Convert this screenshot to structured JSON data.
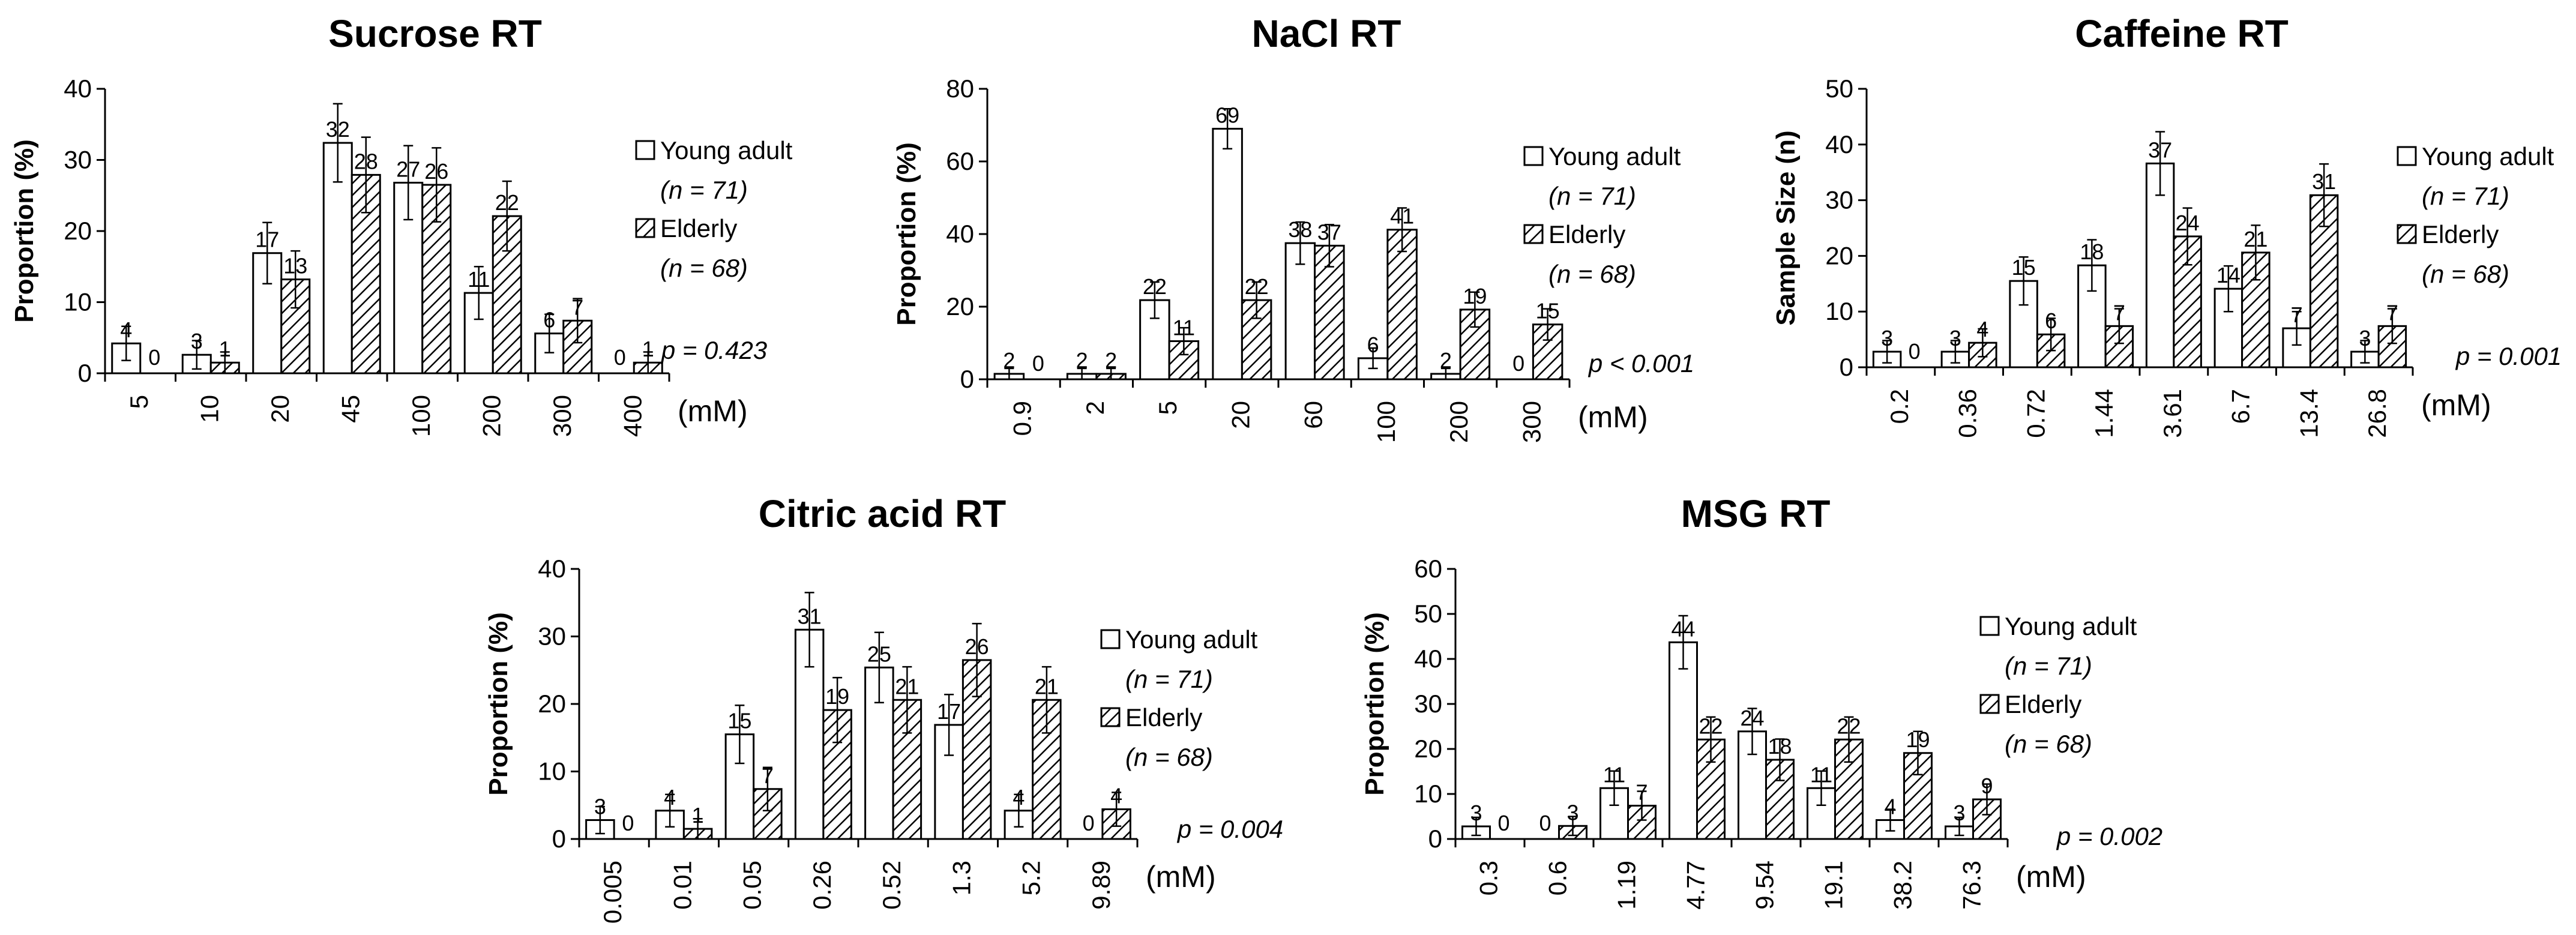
{
  "legend": {
    "series": [
      "Young adult",
      "Elderly"
    ],
    "series_n": [
      "(n = 71)",
      "(n = 68)"
    ],
    "unit": "(mM)"
  },
  "chart_data": [
    {
      "type": "bar",
      "title": "Sucrose RT",
      "ylabel": "Proportion (%)",
      "ylim": [
        0,
        40
      ],
      "yticks": [
        0,
        10,
        20,
        30,
        40
      ],
      "categories": [
        "5",
        "10",
        "20",
        "45",
        "100",
        "200",
        "300",
        "400"
      ],
      "series": [
        {
          "name": "Young adult",
          "values": [
            4,
            3,
            17,
            32,
            27,
            11,
            6,
            0
          ],
          "plot_values": [
            4.2,
            2.6,
            16.9,
            32.4,
            26.8,
            11.3,
            5.6,
            0
          ],
          "errors": [
            2.4,
            2.0,
            4.3,
            5.5,
            5.2,
            3.7,
            2.7,
            0
          ]
        },
        {
          "name": "Elderly",
          "values": [
            0,
            1,
            13,
            28,
            26,
            22,
            7,
            1
          ],
          "plot_values": [
            0,
            1.5,
            13.2,
            27.9,
            26.5,
            22.1,
            7.4,
            1.5
          ],
          "errors": [
            0,
            1.5,
            4.0,
            5.3,
            5.2,
            4.9,
            3.1,
            1.5
          ]
        }
      ],
      "p_value": "p = 0.423"
    },
    {
      "type": "bar",
      "title": "NaCl RT",
      "ylabel": "Proportion (%)",
      "ylim": [
        0,
        80
      ],
      "yticks": [
        0,
        20,
        40,
        60,
        80
      ],
      "categories": [
        "0.9",
        "2",
        "5",
        "20",
        "60",
        "100",
        "200",
        "300"
      ],
      "series": [
        {
          "name": "Young adult",
          "values": [
            2,
            2,
            22,
            69,
            38,
            6,
            2,
            0
          ],
          "plot_values": [
            1.5,
            1.5,
            21.8,
            69,
            37.5,
            5.8,
            1.5,
            0
          ],
          "errors": [
            1.5,
            1.5,
            5,
            5.5,
            5.8,
            2.8,
            1.5,
            0
          ]
        },
        {
          "name": "Elderly",
          "values": [
            0,
            2,
            11,
            22,
            37,
            41,
            19,
            15
          ],
          "plot_values": [
            0,
            1.5,
            10.5,
            21.8,
            36.8,
            41.2,
            19.2,
            15.1
          ],
          "errors": [
            0,
            1.5,
            3.7,
            5.0,
            5.8,
            6.0,
            4.8,
            4.3
          ]
        }
      ],
      "p_value": "p < 0.001"
    },
    {
      "type": "bar",
      "title": "Caffeine RT",
      "ylabel": "Sample Size (n)",
      "ylim": [
        0,
        50
      ],
      "yticks": [
        0,
        10,
        20,
        30,
        40,
        50
      ],
      "categories": [
        "0.2",
        "0.36",
        "0.72",
        "1.44",
        "3.61",
        "6.7",
        "13.4",
        "26.8"
      ],
      "series": [
        {
          "name": "Young adult",
          "values": [
            3,
            3,
            15,
            18,
            37,
            14,
            7,
            3
          ],
          "plot_values": [
            2.8,
            2.8,
            15.5,
            18.3,
            36.6,
            14.1,
            7.0,
            2.8
          ],
          "errors": [
            2.0,
            2.0,
            4.3,
            4.6,
            5.7,
            4.1,
            3.0,
            2.0
          ]
        },
        {
          "name": "Elderly",
          "values": [
            0,
            4,
            6,
            7,
            24,
            21,
            31,
            7
          ],
          "plot_values": [
            0,
            4.4,
            5.9,
            7.4,
            23.5,
            20.6,
            30.9,
            7.4
          ],
          "errors": [
            0,
            2.5,
            2.9,
            3.1,
            5.1,
            4.9,
            5.6,
            3.1
          ]
        }
      ],
      "p_value": "p = 0.001"
    },
    {
      "type": "bar",
      "title": "Citric acid RT",
      "ylabel": "Proportion (%)",
      "ylim": [
        0,
        40
      ],
      "yticks": [
        0,
        10,
        20,
        30,
        40
      ],
      "categories": [
        "0.005",
        "0.01",
        "0.05",
        "0.26",
        "0.52",
        "1.3",
        "5.2",
        "9.89"
      ],
      "series": [
        {
          "name": "Young adult",
          "values": [
            3,
            4,
            15,
            31,
            25,
            17,
            4,
            0
          ],
          "plot_values": [
            2.8,
            4.2,
            15.5,
            31.0,
            25.4,
            16.9,
            4.2,
            0
          ],
          "errors": [
            2.0,
            2.4,
            4.3,
            5.5,
            5.2,
            4.5,
            2.4,
            0
          ]
        },
        {
          "name": "Elderly",
          "values": [
            0,
            1,
            7,
            19,
            21,
            26,
            21,
            4
          ],
          "plot_values": [
            0,
            1.5,
            7.4,
            19.1,
            20.6,
            26.5,
            20.6,
            4.4
          ],
          "errors": [
            0,
            1.5,
            3.2,
            4.8,
            4.9,
            5.4,
            4.9,
            2.5
          ]
        }
      ],
      "p_value": "p = 0.004"
    },
    {
      "type": "bar",
      "title": "MSG RT",
      "ylabel": "Proportion (%)",
      "ylim": [
        0,
        60
      ],
      "yticks": [
        0,
        10,
        20,
        30,
        40,
        50,
        60
      ],
      "categories": [
        "0.3",
        "0.6",
        "1.19",
        "4.77",
        "9.54",
        "19.1",
        "38.2",
        "76.3"
      ],
      "series": [
        {
          "name": "Young adult",
          "values": [
            3,
            0,
            11,
            44,
            24,
            11,
            4,
            3
          ],
          "plot_values": [
            2.8,
            0,
            11.3,
            43.7,
            23.9,
            11.3,
            4.2,
            2.8
          ],
          "errors": [
            2.0,
            0,
            3.8,
            5.9,
            5.1,
            3.8,
            2.4,
            2.0
          ]
        },
        {
          "name": "Elderly",
          "values": [
            0,
            3,
            7,
            22,
            18,
            22,
            19,
            9
          ],
          "plot_values": [
            0,
            2.9,
            7.4,
            22.1,
            17.6,
            22.1,
            19.1,
            8.8
          ],
          "errors": [
            0,
            2.1,
            3.2,
            5.0,
            4.6,
            5.0,
            4.8,
            3.4
          ]
        }
      ],
      "p_value": "p = 0.002"
    }
  ]
}
